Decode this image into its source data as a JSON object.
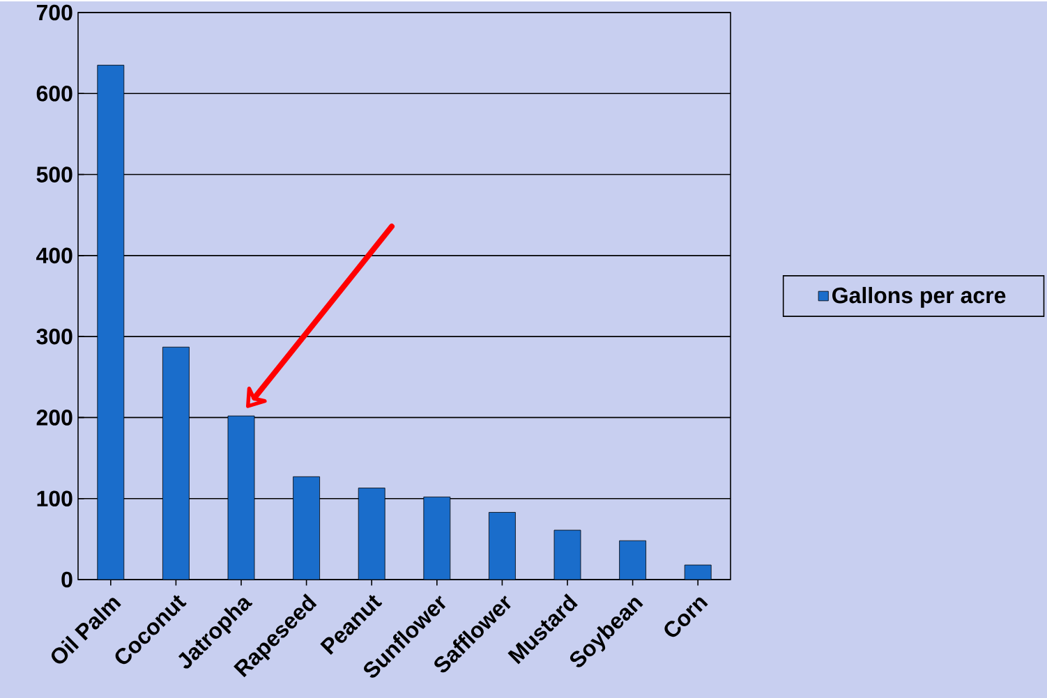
{
  "chart_data": {
    "type": "bar",
    "categories": [
      "Oil Palm",
      "Coconut",
      "Jatropha",
      "Rapeseed",
      "Peanut",
      "Sunflower",
      "Safflower",
      "Mustard",
      "Soybean",
      "Corn"
    ],
    "series": [
      {
        "name": "Gallons per acre",
        "color": "#1a6dcb",
        "values": [
          635,
          287,
          202,
          127,
          113,
          102,
          83,
          61,
          48,
          18
        ]
      }
    ],
    "ylim": [
      0,
      700
    ],
    "yticks": [
      0,
      100,
      200,
      300,
      400,
      500,
      600,
      700
    ],
    "grid": "y",
    "legend": "right"
  }
}
